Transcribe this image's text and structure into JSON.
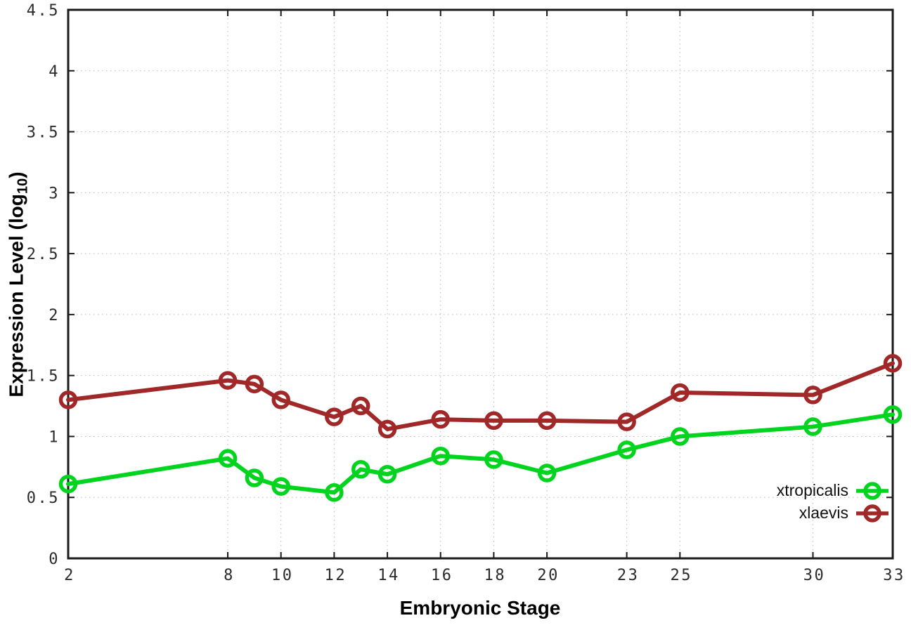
{
  "chart_data": {
    "type": "line",
    "title": "",
    "xlabel": "Embryonic Stage",
    "ylabel": "Expression Level (log10)",
    "ylabel_parts": {
      "main": "Expression Level (log",
      "sub": "10",
      "close": ")"
    },
    "x": [
      2,
      8,
      9,
      10,
      12,
      13,
      14,
      16,
      18,
      20,
      23,
      25,
      30,
      33
    ],
    "series": [
      {
        "name": "xtropicalis",
        "color": "#00d41e",
        "values": [
          0.61,
          0.82,
          0.66,
          0.59,
          0.54,
          0.73,
          0.69,
          0.84,
          0.81,
          0.7,
          0.89,
          1.0,
          1.08,
          1.18
        ]
      },
      {
        "name": "xlaevis",
        "color": "#a12828",
        "values": [
          1.3,
          1.46,
          1.43,
          1.3,
          1.16,
          1.25,
          1.06,
          1.14,
          1.13,
          1.13,
          1.12,
          1.36,
          1.34,
          1.6
        ]
      }
    ],
    "xlim": [
      2,
      33
    ],
    "ylim": [
      0,
      4.5
    ],
    "x_ticks": [
      2,
      8,
      10,
      12,
      14,
      16,
      18,
      20,
      23,
      25,
      30,
      33
    ],
    "x_tick_labels": [
      "2",
      "8",
      "10",
      "12",
      "14",
      "16",
      "18",
      "20",
      "23",
      "25",
      "30",
      "33"
    ],
    "y_ticks": [
      0,
      0.5,
      1,
      1.5,
      2,
      2.5,
      3,
      3.5,
      4,
      4.5
    ],
    "y_tick_labels": [
      "0",
      "0.5",
      "1",
      "1.5",
      "2",
      "2.5",
      "3",
      "3.5",
      "4",
      "4.5"
    ],
    "grid": true,
    "grid_color": "#b8b8b8",
    "axis_color": "#1a1a1a",
    "tick_label_color": "#2b2b2b",
    "legend_position": "inside-bottom-right",
    "legend": [
      "xtropicalis",
      "xlaevis"
    ]
  }
}
